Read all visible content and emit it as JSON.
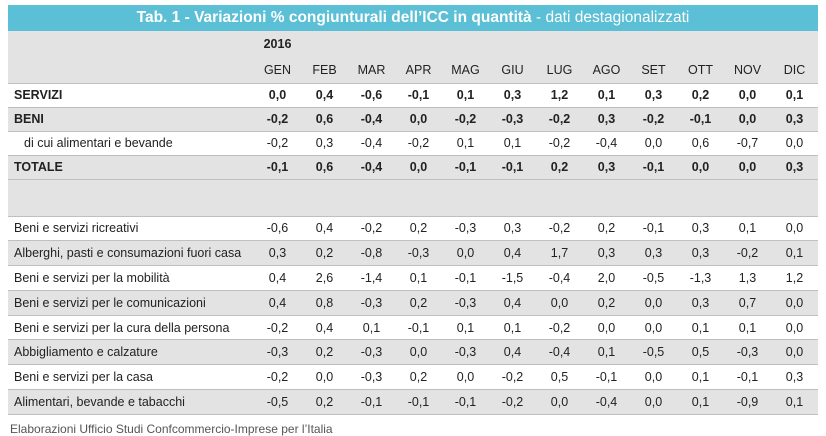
{
  "title": {
    "main": "Tab. 1 - Variazioni % congiunturali dell’ICC in quantità",
    "sub": " - dati destagionalizzati"
  },
  "year": "2016",
  "months": [
    "GEN",
    "FEB",
    "MAR",
    "APR",
    "MAG",
    "GIU",
    "LUG",
    "AGO",
    "SET",
    "OTT",
    "NOV",
    "DIC"
  ],
  "rows_main": [
    {
      "label": "SERVIZI",
      "values": [
        "0,0",
        "0,4",
        "-0,6",
        "-0,1",
        "0,1",
        "0,3",
        "1,2",
        "0,1",
        "0,3",
        "0,2",
        "0,0",
        "0,1"
      ]
    },
    {
      "label": "BENI",
      "values": [
        "-0,2",
        "0,6",
        "-0,4",
        "0,0",
        "-0,2",
        "-0,3",
        "-0,2",
        "0,3",
        "-0,2",
        "-0,1",
        "0,0",
        "0,3"
      ]
    },
    {
      "label": "di cui alimentari e bevande",
      "values": [
        "-0,2",
        "0,3",
        "-0,4",
        "-0,2",
        "0,1",
        "0,1",
        "-0,2",
        "-0,4",
        "0,0",
        "0,6",
        "-0,7",
        "0,0"
      ]
    },
    {
      "label": "TOTALE",
      "values": [
        "-0,1",
        "0,6",
        "-0,4",
        "0,0",
        "-0,1",
        "-0,1",
        "0,2",
        "0,3",
        "-0,1",
        "0,0",
        "0,0",
        "0,3"
      ]
    }
  ],
  "rows_detail": [
    {
      "label": "Beni e servizi ricreativi",
      "values": [
        "-0,6",
        "0,4",
        "-0,2",
        "0,2",
        "-0,3",
        "0,3",
        "-0,2",
        "0,2",
        "-0,1",
        "0,3",
        "0,1",
        "0,0"
      ]
    },
    {
      "label": "Alberghi, pasti e consumazioni fuori casa",
      "values": [
        "0,3",
        "0,2",
        "-0,8",
        "-0,3",
        "0,0",
        "0,4",
        "1,7",
        "0,3",
        "0,3",
        "0,3",
        "-0,2",
        "0,1"
      ]
    },
    {
      "label": "Beni e servizi per la mobilità",
      "values": [
        "0,4",
        "2,6",
        "-1,4",
        "0,1",
        "-0,1",
        "-1,5",
        "-0,4",
        "2,0",
        "-0,5",
        "-1,3",
        "1,3",
        "1,2"
      ]
    },
    {
      "label": "Beni e servizi per le comunicazioni",
      "values": [
        "0,4",
        "0,8",
        "-0,3",
        "0,2",
        "-0,3",
        "0,4",
        "0,0",
        "0,2",
        "0,0",
        "0,3",
        "0,7",
        "0,0"
      ]
    },
    {
      "label": "Beni e servizi per la cura della persona",
      "values": [
        "-0,2",
        "0,4",
        "0,1",
        "-0,1",
        "0,1",
        "0,1",
        "-0,2",
        "0,0",
        "0,0",
        "0,1",
        "0,1",
        "0,0"
      ]
    },
    {
      "label": "Abbigliamento e calzature",
      "values": [
        "-0,3",
        "0,2",
        "-0,3",
        "0,0",
        "-0,3",
        "0,4",
        "-0,4",
        "0,1",
        "-0,5",
        "0,5",
        "-0,3",
        "0,0"
      ]
    },
    {
      "label": "Beni e servizi per la casa",
      "values": [
        "-0,2",
        "0,0",
        "-0,3",
        "0,2",
        "0,0",
        "-0,2",
        "0,5",
        "-0,1",
        "0,0",
        "0,1",
        "-0,1",
        "0,3"
      ]
    },
    {
      "label": "Alimentari, bevande e tabacchi",
      "values": [
        "-0,5",
        "0,2",
        "-0,1",
        "-0,1",
        "-0,1",
        "-0,2",
        "0,0",
        "-0,4",
        "0,0",
        "0,1",
        "-0,9",
        "0,1"
      ]
    }
  ],
  "footer": "Elaborazioni Ufficio Studi Confcommercio-Imprese per l’Italia",
  "colors": {
    "title_bg": "#5bbfd6",
    "shade": "#e3e3e3"
  }
}
